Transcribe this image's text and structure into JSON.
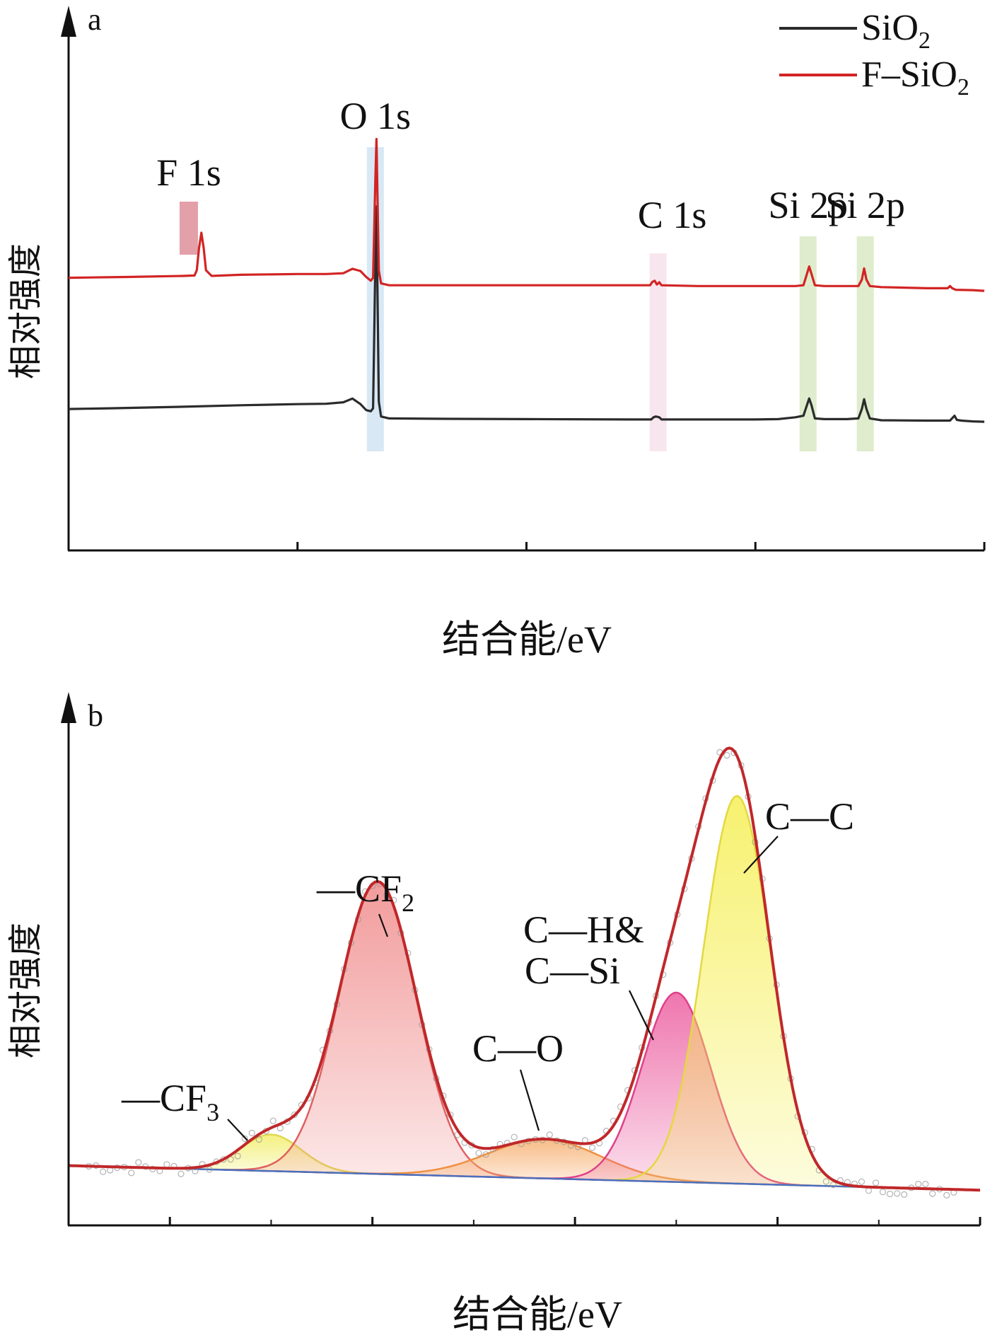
{
  "chart_data": [
    {
      "panel": "a",
      "type": "line",
      "xlabel": "结合能/eV",
      "ylabel": "相对强度",
      "xlim": [
        800,
        0
      ],
      "xticks": [
        800,
        600,
        400,
        200,
        0
      ],
      "legend_position": "top-right",
      "series": [
        {
          "name": "SiO2",
          "name_base": "SiO",
          "name_sub": "2",
          "color": "#2b2b2b",
          "x": [
            800,
            760,
            700,
            650,
            600,
            575,
            560,
            552,
            545,
            540,
            536,
            534,
            532,
            531,
            529,
            527,
            520,
            480,
            400,
            300,
            291,
            289,
            287,
            284,
            282,
            250,
            200,
            180,
            165,
            158,
            155,
            153,
            151,
            148,
            140,
            120,
            110,
            107,
            105,
            103,
            100,
            90,
            50,
            30,
            26,
            24,
            20,
            10,
            0
          ],
          "y": [
            0.23,
            0.232,
            0.236,
            0.24,
            0.243,
            0.244,
            0.248,
            0.258,
            0.243,
            0.227,
            0.224,
            0.232,
            0.62,
            0.77,
            0.25,
            0.21,
            0.205,
            0.204,
            0.203,
            0.202,
            0.202,
            0.208,
            0.21,
            0.208,
            0.202,
            0.202,
            0.202,
            0.203,
            0.208,
            0.212,
            0.24,
            0.258,
            0.24,
            0.205,
            0.203,
            0.203,
            0.205,
            0.23,
            0.256,
            0.23,
            0.205,
            0.2,
            0.199,
            0.199,
            0.212,
            0.201,
            0.199,
            0.197,
            0.196
          ]
        },
        {
          "name": "F–SiO2",
          "name_base": "F–SiO",
          "name_sub": "2",
          "color": "#d22424",
          "x": [
            800,
            750,
            700,
            690,
            688,
            686,
            684,
            682,
            680,
            675,
            650,
            600,
            575,
            560,
            552,
            545,
            540,
            536,
            534,
            532,
            531,
            529,
            527,
            520,
            480,
            400,
            300,
            292,
            290,
            288,
            286,
            284,
            282,
            250,
            200,
            165,
            158,
            155,
            153,
            151,
            148,
            140,
            110,
            107,
            105,
            103,
            100,
            90,
            50,
            32,
            30,
            28,
            25,
            10,
            0
          ],
          "y": [
            0.58,
            0.582,
            0.585,
            0.586,
            0.6,
            0.66,
            0.7,
            0.66,
            0.6,
            0.585,
            0.588,
            0.59,
            0.59,
            0.592,
            0.604,
            0.598,
            0.582,
            0.572,
            0.58,
            0.84,
            0.95,
            0.6,
            0.565,
            0.56,
            0.56,
            0.56,
            0.56,
            0.56,
            0.569,
            0.572,
            0.562,
            0.568,
            0.56,
            0.558,
            0.558,
            0.558,
            0.56,
            0.59,
            0.61,
            0.59,
            0.56,
            0.558,
            0.558,
            0.575,
            0.605,
            0.575,
            0.558,
            0.555,
            0.552,
            0.552,
            0.558,
            0.552,
            0.548,
            0.547,
            0.545
          ]
        }
      ],
      "peak_labels": [
        {
          "text": "F 1s",
          "x": 695,
          "color": "#d06070"
        },
        {
          "text": "O 1s",
          "x": 532,
          "color": "#a8cbe8"
        },
        {
          "text": "C 1s",
          "x": 285,
          "color": "#f0c8da"
        },
        {
          "text": "Si 2p",
          "x": 154,
          "color": "#b8d490"
        },
        {
          "text": "Si 2p",
          "x": 104,
          "color": "#b8d490"
        }
      ]
    },
    {
      "panel": "b",
      "type": "area",
      "xlabel": "结合能/eV",
      "ylabel": "相对强度",
      "xlim": [
        298,
        280
      ],
      "xticks": [
        296,
        292,
        288,
        284,
        280
      ],
      "baseline": {
        "x": [
          298,
          280
        ],
        "y": [
          0.115,
          0.06
        ],
        "color": "#4a6fc0"
      },
      "components": [
        {
          "label": "—CF3",
          "label_base": "—CF",
          "label_sub": "3",
          "center": 294.0,
          "height": 0.082,
          "fwhm": 1.4,
          "fill": "#f2ee6a",
          "stroke": "#e0d850"
        },
        {
          "label": "—CF2",
          "label_base": "—CF",
          "label_sub": "2",
          "center": 291.9,
          "height": 0.655,
          "fwhm": 1.8,
          "fill": "#f08a8a",
          "stroke": "#e06060"
        },
        {
          "label": "C—O",
          "center": 288.6,
          "height": 0.088,
          "fwhm": 2.6,
          "fill": "#f6b070",
          "stroke": "#f09040"
        },
        {
          "label": "C—H& C—Si",
          "label_lines": [
            "C—H&",
            "C—Si"
          ],
          "center": 286.0,
          "height": 0.425,
          "fwhm": 1.6,
          "fill": "#ec5ea0",
          "stroke": "#e0408a"
        },
        {
          "label": "C—C",
          "center": 284.8,
          "height": 0.87,
          "fwhm": 1.55,
          "fill": "#f5ef55",
          "stroke": "#e4d840"
        }
      ],
      "envelope_color": "#c0282a",
      "data_points_color": "#999999"
    }
  ],
  "panel_a": {
    "letter": "a"
  },
  "panel_b": {
    "letter": "b"
  }
}
